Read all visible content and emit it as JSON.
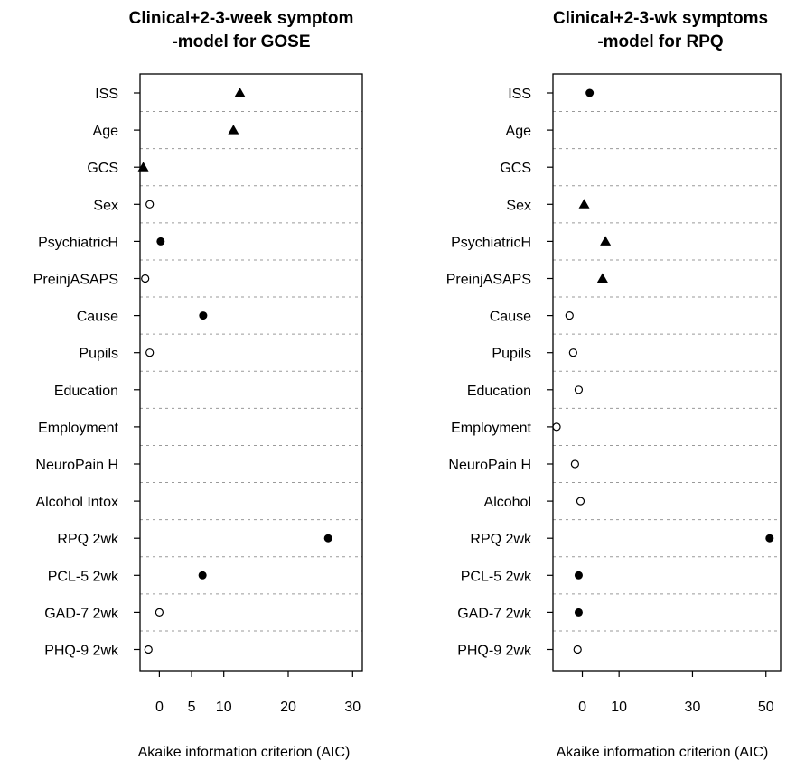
{
  "chart_data": [
    {
      "type": "scatter",
      "title": [
        "Clinical+2-3-week symptom",
        "-model for GOSE"
      ],
      "xlabel": "Akaike information criterion (AIC)",
      "xlim": [
        -3,
        31.5
      ],
      "ticks": [
        0,
        5,
        10,
        20,
        30
      ],
      "categories": [
        "ISS",
        "Age",
        "GCS",
        "Sex",
        "PsychiatricH",
        "PreinjASAPS",
        "Cause",
        "Pupils",
        "Education",
        "Employment",
        "NeuroPain H",
        "Alcohol Intox",
        "RPQ 2wk",
        "PCL-5 2wk",
        "GAD-7 2wk",
        "PHQ-9 2wk"
      ],
      "points": [
        {
          "category": "ISS",
          "value": 12.5,
          "marker": "triangle"
        },
        {
          "category": "Age",
          "value": 11.5,
          "marker": "triangle"
        },
        {
          "category": "GCS",
          "value": -2.5,
          "marker": "triangle"
        },
        {
          "category": "Sex",
          "value": -1.5,
          "marker": "open-circle"
        },
        {
          "category": "PsychiatricH",
          "value": 0.2,
          "marker": "filled-circle"
        },
        {
          "category": "PreinjASAPS",
          "value": -2.2,
          "marker": "open-circle"
        },
        {
          "category": "Cause",
          "value": 6.8,
          "marker": "filled-circle"
        },
        {
          "category": "Pupils",
          "value": -1.5,
          "marker": "open-circle"
        },
        {
          "category": "RPQ 2wk",
          "value": 26.2,
          "marker": "filled-circle"
        },
        {
          "category": "PCL-5 2wk",
          "value": 6.7,
          "marker": "filled-circle"
        },
        {
          "category": "GAD-7 2wk",
          "value": 0.0,
          "marker": "open-circle"
        },
        {
          "category": "PHQ-9 2wk",
          "value": -1.7,
          "marker": "open-circle"
        }
      ],
      "grid": true
    },
    {
      "type": "scatter",
      "title": [
        "Clinical+2-3-wk symptoms",
        "-model for RPQ"
      ],
      "xlabel": "Akaike information criterion (AIC)",
      "xlim": [
        -8,
        54
      ],
      "ticks": [
        0,
        10,
        30,
        50
      ],
      "categories": [
        "ISS",
        "Age",
        "GCS",
        "Sex",
        "PsychiatricH",
        "PreinjASAPS",
        "Cause",
        "Pupils",
        "Education",
        "Employment",
        "NeuroPain H",
        "Alcohol",
        "RPQ 2wk",
        "PCL-5 2wk",
        "GAD-7 2wk",
        "PHQ-9 2wk"
      ],
      "points": [
        {
          "category": "ISS",
          "value": 2.0,
          "marker": "filled-circle"
        },
        {
          "category": "Sex",
          "value": 0.5,
          "marker": "triangle"
        },
        {
          "category": "PsychiatricH",
          "value": 6.3,
          "marker": "triangle"
        },
        {
          "category": "PreinjASAPS",
          "value": 5.5,
          "marker": "triangle"
        },
        {
          "category": "Cause",
          "value": -3.5,
          "marker": "open-circle"
        },
        {
          "category": "Pupils",
          "value": -2.5,
          "marker": "open-circle"
        },
        {
          "category": "Education",
          "value": -1.0,
          "marker": "open-circle"
        },
        {
          "category": "Employment",
          "value": -7.0,
          "marker": "open-circle"
        },
        {
          "category": "NeuroPain H",
          "value": -2.0,
          "marker": "open-circle"
        },
        {
          "category": "Alcohol",
          "value": -0.5,
          "marker": "open-circle"
        },
        {
          "category": "RPQ 2wk",
          "value": 51.0,
          "marker": "filled-circle"
        },
        {
          "category": "PCL-5 2wk",
          "value": -1.0,
          "marker": "filled-circle"
        },
        {
          "category": "GAD-7 2wk",
          "value": -1.0,
          "marker": "filled-circle"
        },
        {
          "category": "PHQ-9 2wk",
          "value": -1.3,
          "marker": "open-circle"
        }
      ],
      "grid": true
    }
  ]
}
